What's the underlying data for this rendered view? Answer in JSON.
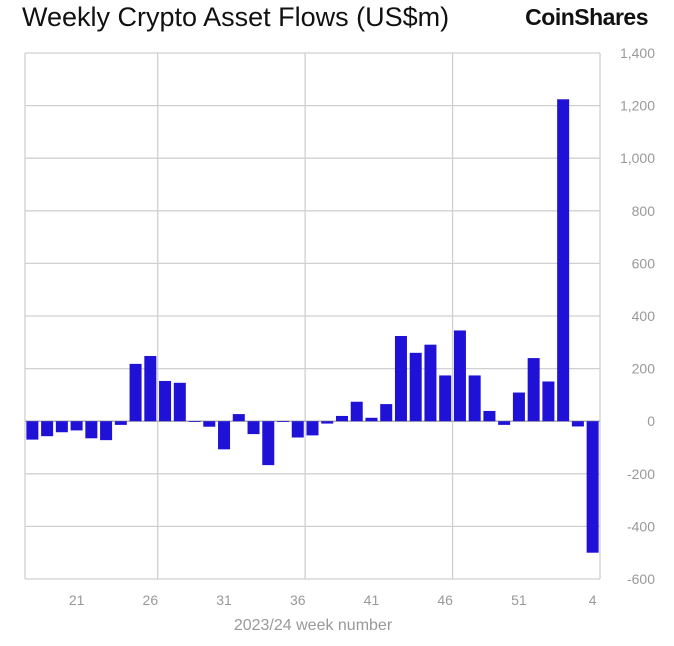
{
  "brand": "CoinShares",
  "chart_data": {
    "type": "bar",
    "title": "Weekly Crypto Asset Flows (US$m)",
    "xlabel": "2023/24 week number",
    "ylabel": "",
    "ylim": [
      -600,
      1400
    ],
    "y_axis_position": "right",
    "yticks": [
      1400,
      1200,
      1000,
      800,
      600,
      400,
      200,
      0,
      -200,
      -400,
      -600
    ],
    "ytick_labels": [
      "1,400",
      "1,200",
      "1,000",
      "800",
      "600",
      "400",
      "200",
      "0",
      "-200",
      "-400",
      "-600"
    ],
    "categories": [
      "18",
      "19",
      "20",
      "21",
      "22",
      "23",
      "24",
      "25",
      "26",
      "27",
      "28",
      "29",
      "30",
      "31",
      "32",
      "33",
      "34",
      "35",
      "36",
      "37",
      "38",
      "39",
      "40",
      "41",
      "42",
      "43",
      "44",
      "45",
      "46",
      "47",
      "48",
      "49",
      "50",
      "51",
      "52",
      "1",
      "2",
      "3",
      "4"
    ],
    "xtick_labels": [
      "21",
      "26",
      "31",
      "36",
      "41",
      "46",
      "51",
      "4"
    ],
    "values": [
      -70,
      -57,
      -42,
      -35,
      -65,
      -72,
      -14,
      218,
      248,
      153,
      146,
      0,
      -21,
      -107,
      27,
      -49,
      -167,
      -3,
      -62,
      -54,
      -9,
      20,
      74,
      13,
      65,
      324,
      260,
      291,
      174,
      345,
      174,
      39,
      -14,
      109,
      240,
      151,
      1224,
      -20,
      -500
    ],
    "bar_color": "#1f12d6",
    "grid": true
  }
}
